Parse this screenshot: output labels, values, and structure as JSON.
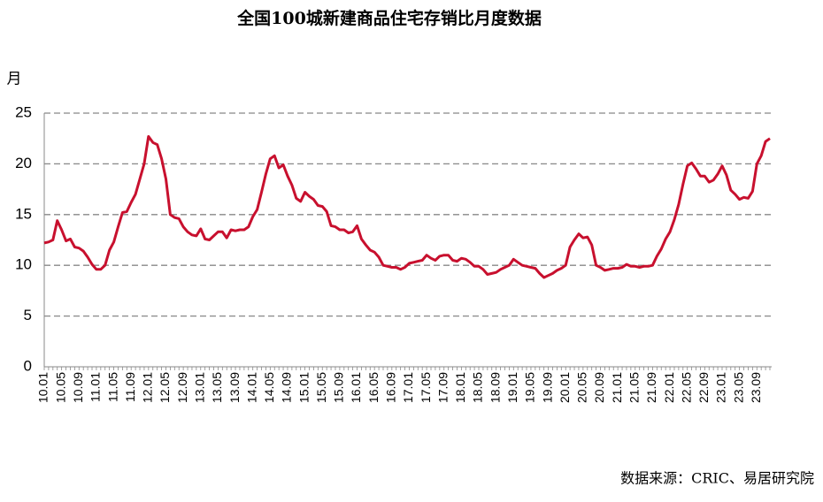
{
  "chart_data": {
    "type": "line",
    "title": "全国100城新建商品住宅存销比月度数据",
    "y_label": "月",
    "source": "数据来源：CRIC、易居研究院",
    "categories": [
      "10.01",
      null,
      null,
      null,
      "10.05",
      null,
      null,
      null,
      "10.09",
      null,
      null,
      null,
      "11.01",
      null,
      null,
      null,
      "11.05",
      null,
      null,
      null,
      "11.09",
      null,
      null,
      null,
      "12.01",
      null,
      null,
      null,
      "12.05",
      null,
      null,
      null,
      "12.09",
      null,
      null,
      null,
      "13.01",
      null,
      null,
      null,
      "13.05",
      null,
      null,
      null,
      "13.09",
      null,
      null,
      null,
      "14.01",
      null,
      null,
      null,
      "14.05",
      null,
      null,
      null,
      "14.09",
      null,
      null,
      null,
      "15.01",
      null,
      null,
      null,
      "15.05",
      null,
      null,
      null,
      "15.09",
      null,
      null,
      null,
      "16.01",
      null,
      null,
      null,
      "16.05",
      null,
      null,
      null,
      "16.09",
      null,
      null,
      null,
      "17.01",
      null,
      null,
      null,
      "17.05",
      null,
      null,
      null,
      "17.09",
      null,
      null,
      null,
      "18.01",
      null,
      null,
      null,
      "18.05",
      null,
      null,
      null,
      "18.09",
      null,
      null,
      null,
      "19.01",
      null,
      null,
      null,
      "19.05",
      null,
      null,
      null,
      "19.09",
      null,
      null,
      null,
      "20.01",
      null,
      null,
      null,
      "20.05",
      null,
      null,
      null,
      "20.09",
      null,
      null,
      null,
      "21.01",
      null,
      null,
      null,
      "21.05",
      null,
      null,
      null,
      "21.09",
      null,
      null,
      null,
      "22.01",
      null,
      null,
      null,
      "22.05",
      null,
      null,
      null,
      "22.09",
      null,
      null,
      null,
      "23.01",
      null,
      null,
      null,
      "23.05",
      null,
      null,
      null,
      "23.09",
      null,
      null,
      null
    ],
    "series": [
      {
        "name": "存销比",
        "color": "#c8102e",
        "values": [
          12.2,
          12.3,
          12.5,
          14.4,
          13.5,
          12.4,
          12.6,
          11.8,
          11.7,
          11.4,
          10.8,
          10.1,
          9.6,
          9.6,
          10.0,
          11.5,
          12.3,
          13.8,
          15.2,
          15.3,
          16.2,
          17.0,
          18.5,
          20.0,
          22.7,
          22.1,
          21.9,
          20.5,
          18.5,
          15.0,
          14.7,
          14.6,
          13.8,
          13.3,
          13.0,
          12.9,
          13.6,
          12.6,
          12.5,
          12.9,
          13.3,
          13.3,
          12.7,
          13.5,
          13.4,
          13.5,
          13.5,
          13.8,
          14.8,
          15.5,
          17.2,
          19.0,
          20.5,
          20.8,
          19.6,
          19.9,
          18.8,
          17.9,
          16.6,
          16.3,
          17.2,
          16.8,
          16.5,
          15.9,
          15.8,
          15.3,
          13.9,
          13.8,
          13.5,
          13.5,
          13.2,
          13.3,
          13.9,
          12.6,
          12.0,
          11.5,
          11.3,
          10.8,
          10.0,
          9.9,
          9.8,
          9.8,
          9.6,
          9.8,
          10.2,
          10.3,
          10.4,
          10.5,
          11.0,
          10.7,
          10.5,
          10.9,
          11.0,
          11.0,
          10.5,
          10.4,
          10.7,
          10.6,
          10.3,
          9.9,
          9.9,
          9.6,
          9.1,
          9.2,
          9.3,
          9.6,
          9.8,
          10.0,
          10.6,
          10.3,
          10.0,
          9.9,
          9.8,
          9.7,
          9.2,
          8.8,
          9.0,
          9.2,
          9.5,
          9.7,
          10.0,
          11.8,
          12.5,
          13.1,
          12.7,
          12.8,
          12.0,
          10.0,
          9.8,
          9.5,
          9.6,
          9.7,
          9.7,
          9.8,
          10.1,
          9.9,
          9.9,
          9.8,
          9.9,
          9.9,
          10.0,
          10.9,
          11.6,
          12.6,
          13.3,
          14.5,
          16.0,
          18.0,
          19.8,
          20.1,
          19.5,
          18.8,
          18.8,
          18.2,
          18.4,
          19.0,
          19.8,
          18.9,
          17.4,
          17.0,
          16.5,
          16.7,
          16.6,
          17.3,
          20.0,
          20.8,
          22.2,
          22.5
        ]
      }
    ],
    "ylim": [
      0,
      25
    ],
    "yticks": [
      0,
      5,
      10,
      15,
      20,
      25
    ],
    "grid": true
  }
}
